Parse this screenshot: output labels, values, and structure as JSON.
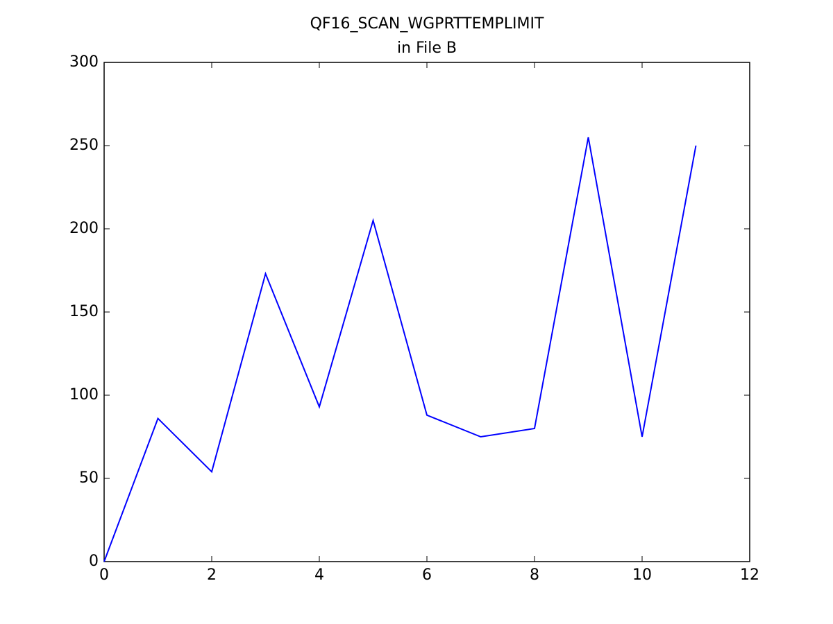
{
  "chart_data": {
    "type": "line",
    "title": [
      "QF16_SCAN_WGPRTTEMPLIMIT",
      "in File B"
    ],
    "x": [
      0,
      1,
      2,
      3,
      4,
      5,
      6,
      7,
      8,
      9,
      10,
      11
    ],
    "series": [
      {
        "color": "#0000ff",
        "values": [
          0,
          86,
          54,
          173,
          93,
          205,
          88,
          75,
          80,
          255,
          75,
          250
        ]
      }
    ],
    "xlim": [
      0,
      12
    ],
    "xticks": [
      0,
      2,
      4,
      6,
      8,
      10,
      12
    ],
    "ylim": [
      0,
      300
    ],
    "yticks": [
      0,
      50,
      100,
      150,
      200,
      250,
      300
    ],
    "grid": false
  }
}
